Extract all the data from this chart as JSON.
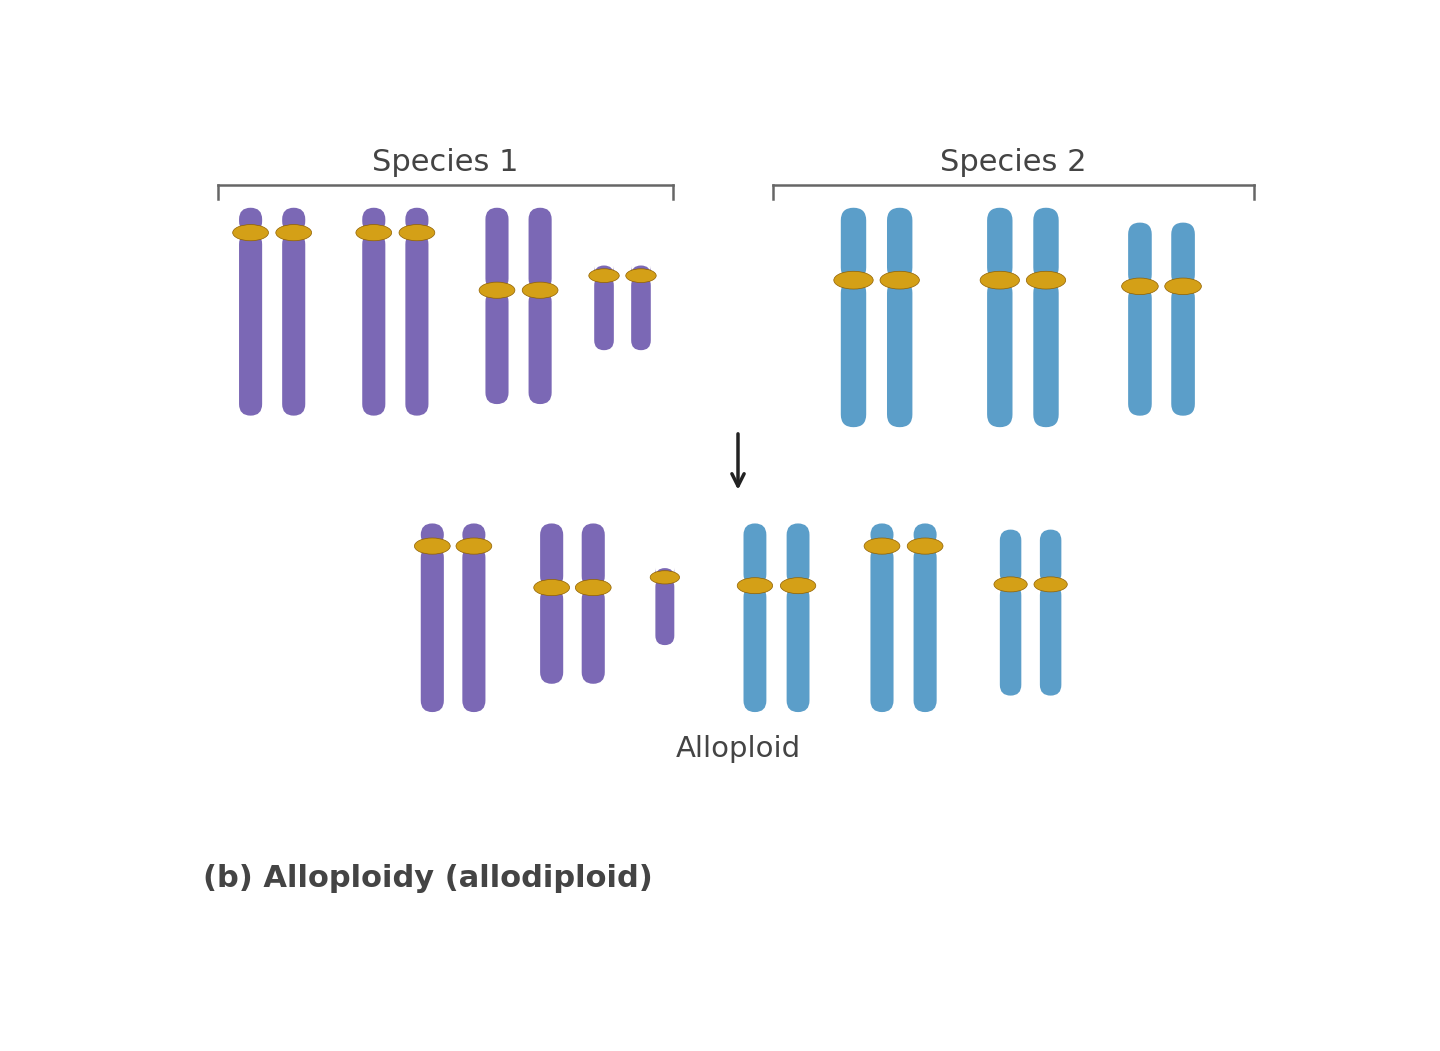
{
  "title": "(b) Alloploidy (allodiploid)",
  "species1_label": "Species 1",
  "species2_label": "Species 2",
  "alloploid_label": "Alloploid",
  "purple": "#7B68B5",
  "purple_light": "#9B8FD0",
  "blue": "#5B9EC9",
  "blue_light": "#80BEDE",
  "gold": "#D4A017",
  "gold_light": "#F0C040",
  "background": "#FFFFFF",
  "text_color": "#444444",
  "bracket_color": "#666666"
}
